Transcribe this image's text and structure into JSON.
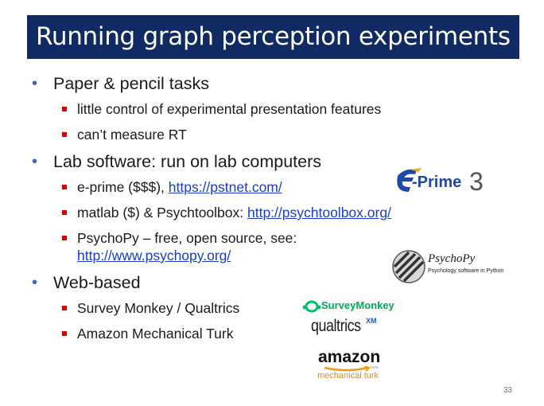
{
  "title": "Running graph perception experiments",
  "bullets": {
    "b1": {
      "label": "Paper & pencil tasks",
      "sub1": "little control of experimental presentation features",
      "sub2": "can’t measure RT"
    },
    "b2": {
      "label": "Lab software: run on lab computers",
      "sub1_text": "e-prime ($$$), ",
      "sub1_link": "https://pstnet.com/",
      "sub2_text": "matlab ($) & Psychtoolbox: ",
      "sub2_link": "http://psychtoolbox.org/",
      "sub3_text": "PsychoPy – free, open source, see:",
      "sub3_link": "http://www.psychopy.org/"
    },
    "b3": {
      "label": "Web-based",
      "sub1": "Survey Monkey / Qualtrics",
      "sub2": "Amazon Mechanical Turk"
    }
  },
  "logos": {
    "eprime": {
      "text": "-Prime",
      "number": "3"
    },
    "psychopy": {
      "title": "PsychoPy",
      "subtitle": "Psychology software in Python"
    },
    "surveymonkey": {
      "text": "SurveyMonkey"
    },
    "qualtrics": {
      "text": "qualtrics",
      "sup": "XM"
    },
    "amazon": {
      "text": "amazon",
      "sub": "mechanical turk",
      "beta": "beta"
    }
  },
  "colors": {
    "title_bg": "#102a63",
    "bullet": "#2e6bbd",
    "square": "#e00000",
    "link": "#1a3cc8"
  },
  "slide_number": "33"
}
